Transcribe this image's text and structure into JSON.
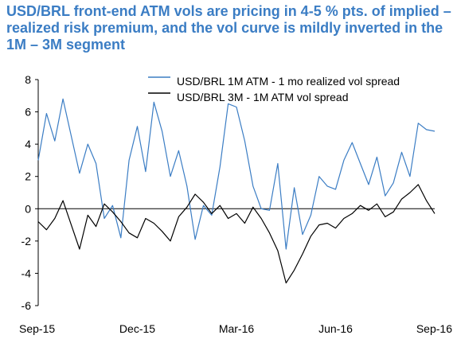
{
  "chart_data": {
    "type": "line",
    "title": "USD/BRL front-end ATM vols are pricing in 4-5 % pts. of implied – realized risk premium, and the vol curve is mildly inverted in the 1M – 3M segment",
    "xlabel": "",
    "ylabel": "",
    "x_tick_labels": [
      "Sep-15",
      "Dec-15",
      "Mar-16",
      "Jun-16",
      "Sep-16"
    ],
    "x_range": [
      "2015-09",
      "2016-09"
    ],
    "ylim": [
      -6,
      8
    ],
    "yticks": [
      -6,
      -4,
      -2,
      0,
      2,
      4,
      6,
      8
    ],
    "grid": false,
    "legend_position": "top-right",
    "colors": {
      "series1": "#3b7dc4",
      "series2": "#000000",
      "title": "#3b7dc4"
    },
    "series": [
      {
        "name": "USD/BRL 1M ATM - 1 mo realized vol spread",
        "color": "#3b7dc4",
        "x_months": [
          0,
          0.25,
          0.5,
          0.75,
          1,
          1.25,
          1.5,
          1.75,
          2,
          2.25,
          2.5,
          2.75,
          3,
          3.25,
          3.5,
          3.75,
          4,
          4.25,
          4.5,
          4.75,
          5,
          5.25,
          5.5,
          5.75,
          6,
          6.25,
          6.5,
          6.75,
          7,
          7.25,
          7.5,
          7.75,
          8,
          8.25,
          8.5,
          8.75,
          9,
          9.25,
          9.5,
          9.75,
          10,
          10.25,
          10.5,
          10.75,
          11,
          11.25,
          11.5,
          11.75,
          12
        ],
        "values": [
          3.0,
          5.9,
          4.2,
          6.8,
          4.5,
          2.2,
          4.0,
          2.8,
          -0.6,
          0.2,
          -1.8,
          3.0,
          5.1,
          2.3,
          6.6,
          4.8,
          2.0,
          3.6,
          1.4,
          -1.9,
          0.2,
          -0.4,
          2.6,
          6.5,
          6.3,
          4.2,
          1.4,
          0.0,
          -0.1,
          2.8,
          -2.5,
          1.3,
          -1.6,
          -0.4,
          2.0,
          1.4,
          1.2,
          3.0,
          4.1,
          2.8,
          1.5,
          3.2,
          0.8,
          1.6,
          3.5,
          2.0,
          5.3,
          4.9,
          4.8
        ]
      },
      {
        "name": "USD/BRL 3M - 1M ATM vol spread",
        "color": "#000000",
        "x_months": [
          0,
          0.25,
          0.5,
          0.75,
          1,
          1.25,
          1.5,
          1.75,
          2,
          2.25,
          2.5,
          2.75,
          3,
          3.25,
          3.5,
          3.75,
          4,
          4.25,
          4.5,
          4.75,
          5,
          5.25,
          5.5,
          5.75,
          6,
          6.25,
          6.5,
          6.75,
          7,
          7.25,
          7.5,
          7.75,
          8,
          8.25,
          8.5,
          8.75,
          9,
          9.25,
          9.5,
          9.75,
          10,
          10.25,
          10.5,
          10.75,
          11,
          11.25,
          11.5,
          11.75,
          12
        ],
        "values": [
          -0.8,
          -1.3,
          -0.6,
          0.5,
          -1.0,
          -2.5,
          -0.4,
          -1.1,
          0.3,
          -0.2,
          -0.8,
          -1.5,
          -1.8,
          -0.6,
          -0.9,
          -1.4,
          -2.0,
          -0.5,
          0.1,
          0.9,
          0.4,
          -0.3,
          0.2,
          -0.6,
          -0.3,
          -0.9,
          0.1,
          -0.6,
          -1.5,
          -2.6,
          -4.6,
          -3.8,
          -2.8,
          -1.7,
          -1.0,
          -0.9,
          -1.2,
          -0.6,
          -0.3,
          0.2,
          -0.1,
          0.3,
          -0.5,
          -0.2,
          0.6,
          1.0,
          1.5,
          0.5,
          -0.3
        ]
      }
    ]
  }
}
